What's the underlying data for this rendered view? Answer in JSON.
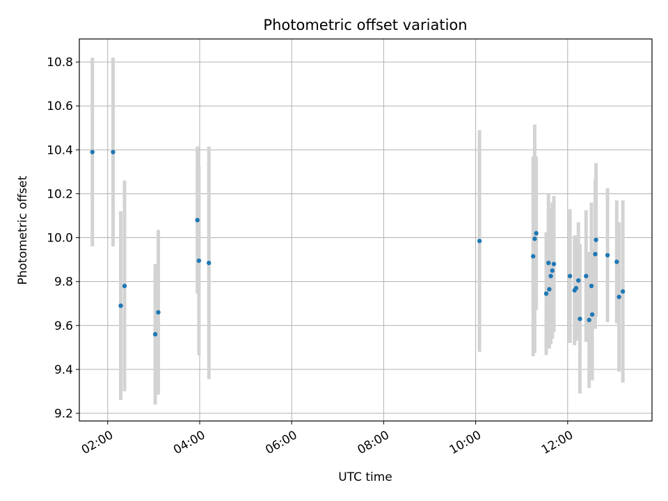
{
  "chart_data": {
    "type": "scatter",
    "title": "Photometric offset variation",
    "xlabel": "UTC time",
    "ylabel": "Photometric offset",
    "grid": true,
    "xlim": [
      "01:23",
      "13:50"
    ],
    "ylim": [
      9.165,
      10.905
    ],
    "x_ticks": [
      "02:00",
      "04:00",
      "06:00",
      "08:00",
      "10:00",
      "12:00"
    ],
    "y_ticks": [
      "9.2",
      "9.4",
      "9.6",
      "9.8",
      "10.0",
      "10.2",
      "10.4",
      "10.6",
      "10.8"
    ],
    "colors": {
      "point": "#1f77b4",
      "errorbar": "#d3d3d3",
      "grid": "#b0b0b0"
    },
    "points": [
      {
        "time": "01:40",
        "y": 10.39,
        "err": 0.43
      },
      {
        "time": "02:07",
        "y": 10.39,
        "err": 0.43
      },
      {
        "time": "02:17",
        "y": 9.69,
        "err": 0.43
      },
      {
        "time": "02:22",
        "y": 9.78,
        "err": 0.48
      },
      {
        "time": "03:02",
        "y": 9.56,
        "err": 0.32
      },
      {
        "time": "03:06",
        "y": 9.66,
        "err": 0.375
      },
      {
        "time": "03:57",
        "y": 10.08,
        "err": 0.335
      },
      {
        "time": "03:59",
        "y": 9.895,
        "err": 0.43
      },
      {
        "time": "04:12",
        "y": 9.885,
        "err": 0.53
      },
      {
        "time": "10:05",
        "y": 9.985,
        "err": 0.505
      },
      {
        "time": "11:15",
        "y": 9.915,
        "err": 0.455
      },
      {
        "time": "11:17",
        "y": 9.995,
        "err": 0.52
      },
      {
        "time": "11:19",
        "y": 10.02,
        "err": 0.35
      },
      {
        "time": "11:32",
        "y": 9.745,
        "err": 0.28
      },
      {
        "time": "11:35",
        "y": 9.885,
        "err": 0.315
      },
      {
        "time": "11:36",
        "y": 9.765,
        "err": 0.27
      },
      {
        "time": "11:38",
        "y": 9.825,
        "err": 0.31
      },
      {
        "time": "11:40",
        "y": 9.85,
        "err": 0.31
      },
      {
        "time": "11:42",
        "y": 9.88,
        "err": 0.31
      },
      {
        "time": "12:03",
        "y": 9.825,
        "err": 0.305
      },
      {
        "time": "12:09",
        "y": 9.76,
        "err": 0.25
      },
      {
        "time": "12:11",
        "y": 9.77,
        "err": 0.24
      },
      {
        "time": "12:14",
        "y": 9.805,
        "err": 0.265
      },
      {
        "time": "12:16",
        "y": 9.63,
        "err": 0.34
      },
      {
        "time": "12:24",
        "y": 9.825,
        "err": 0.3
      },
      {
        "time": "12:28",
        "y": 9.625,
        "err": 0.31
      },
      {
        "time": "12:31",
        "y": 9.78,
        "err": 0.38
      },
      {
        "time": "12:32",
        "y": 9.65,
        "err": 0.3
      },
      {
        "time": "12:36",
        "y": 9.925,
        "err": 0.34
      },
      {
        "time": "12:37",
        "y": 9.99,
        "err": 0.35
      },
      {
        "time": "12:52",
        "y": 9.92,
        "err": 0.305
      },
      {
        "time": "13:04",
        "y": 9.89,
        "err": 0.28
      },
      {
        "time": "13:07",
        "y": 9.73,
        "err": 0.34
      },
      {
        "time": "13:12",
        "y": 9.755,
        "err": 0.415
      }
    ]
  }
}
